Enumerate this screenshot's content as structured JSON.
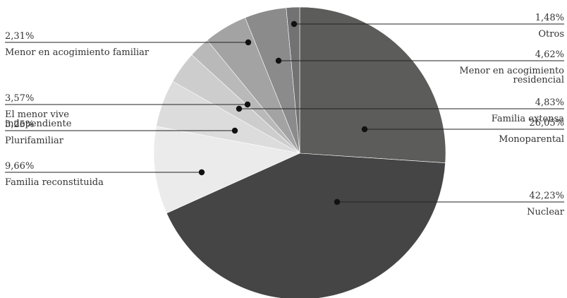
{
  "chart_data": {
    "type": "pie",
    "title": "",
    "slices": [
      {
        "label": "Monoparental",
        "value": 26.05,
        "value_label": "26,05%",
        "color": "#5c5c5a"
      },
      {
        "label": "Nuclear",
        "value": 42.23,
        "value_label": "42,23%",
        "color": "#454545"
      },
      {
        "label": "Familia reconstituida",
        "value": 9.66,
        "value_label": "9,66%",
        "color": "#ebebeb"
      },
      {
        "label": "Plurifamiliar",
        "value": 5.25,
        "value_label": "5,25%",
        "color": "#dcdcdc"
      },
      {
        "label": "El menor vive\nindependiente",
        "value": 3.57,
        "value_label": "3,57%",
        "color": "#cdcdcd"
      },
      {
        "label": "Menor en acogimiento familiar",
        "value": 2.31,
        "value_label": "2,31%",
        "color": "#b9b9b9"
      },
      {
        "label": "Familia extensa",
        "value": 4.83,
        "value_label": "4,83%",
        "color": "#a3a3a3"
      },
      {
        "label": "Menor en acogimiento\nresidencial",
        "value": 4.62,
        "value_label": "4,62%",
        "color": "#8b8b8b"
      },
      {
        "label": "Otros",
        "value": 1.48,
        "value_label": "1,48%",
        "color": "#727272"
      }
    ],
    "legend": "none"
  }
}
